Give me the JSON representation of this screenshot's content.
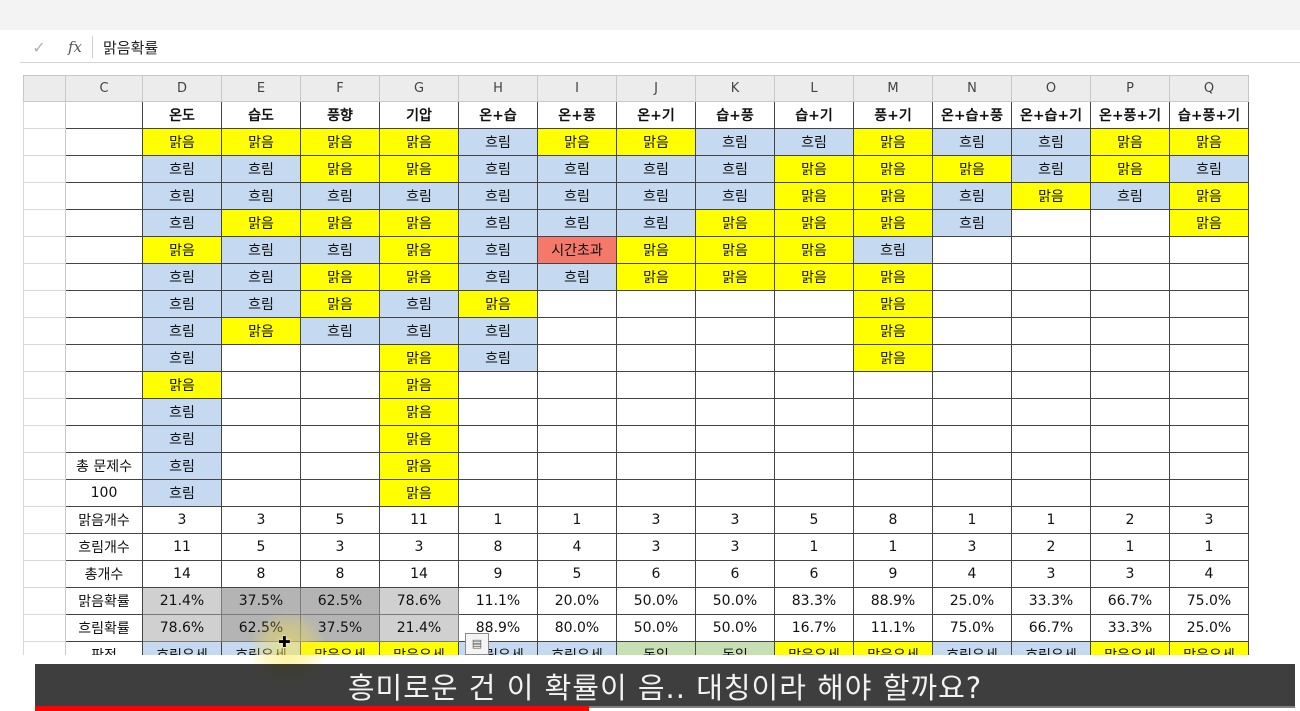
{
  "formula_bar": {
    "check_icon": "check-icon",
    "fx_label": "fx",
    "value": "맑음확률"
  },
  "columns": [
    "C",
    "D",
    "E",
    "F",
    "G",
    "H",
    "I",
    "J",
    "K",
    "L",
    "M",
    "N",
    "O",
    "P",
    "Q"
  ],
  "headers": [
    "온도",
    "습도",
    "풍향",
    "기압",
    "온+습",
    "온+풍",
    "온+기",
    "습+풍",
    "습+기",
    "풍+기",
    "온+습+풍",
    "온+습+기",
    "온+풍+기",
    "습+풍+기"
  ],
  "side_labels": {
    "total_questions_label": "총 문제수",
    "total_questions_value": "100"
  },
  "data_rows": [
    [
      "맑음",
      "맑음",
      "맑음",
      "맑음",
      "흐림",
      "맑음",
      "맑음",
      "흐림",
      "흐림",
      "맑음",
      "흐림",
      "흐림",
      "맑음",
      "맑음"
    ],
    [
      "흐림",
      "흐림",
      "맑음",
      "맑음",
      "흐림",
      "흐림",
      "흐림",
      "흐림",
      "맑음",
      "맑음",
      "맑음",
      "흐림",
      "맑음",
      "흐림"
    ],
    [
      "흐림",
      "흐림",
      "흐림",
      "흐림",
      "흐림",
      "흐림",
      "흐림",
      "흐림",
      "맑음",
      "맑음",
      "흐림",
      "맑음",
      "흐림",
      "맑음"
    ],
    [
      "흐림",
      "맑음",
      "맑음",
      "맑음",
      "흐림",
      "흐림",
      "흐림",
      "맑음",
      "맑음",
      "맑음",
      "흐림",
      "",
      "",
      "맑음"
    ],
    [
      "맑음",
      "흐림",
      "흐림",
      "맑음",
      "흐림",
      "시간초과",
      "맑음",
      "맑음",
      "맑음",
      "흐림",
      "",
      "",
      "",
      ""
    ],
    [
      "흐림",
      "흐림",
      "맑음",
      "맑음",
      "흐림",
      "흐림",
      "맑음",
      "맑음",
      "맑음",
      "맑음",
      "",
      "",
      "",
      ""
    ],
    [
      "흐림",
      "흐림",
      "맑음",
      "흐림",
      "맑음",
      "",
      "",
      "",
      "",
      "맑음",
      "",
      "",
      "",
      ""
    ],
    [
      "흐림",
      "맑음",
      "흐림",
      "흐림",
      "흐림",
      "",
      "",
      "",
      "",
      "맑음",
      "",
      "",
      "",
      ""
    ],
    [
      "흐림",
      "",
      "",
      "맑음",
      "흐림",
      "",
      "",
      "",
      "",
      "맑음",
      "",
      "",
      "",
      ""
    ],
    [
      "맑음",
      "",
      "",
      "맑음",
      "",
      "",
      "",
      "",
      "",
      "",
      "",
      "",
      "",
      ""
    ],
    [
      "흐림",
      "",
      "",
      "맑음",
      "",
      "",
      "",
      "",
      "",
      "",
      "",
      "",
      "",
      ""
    ],
    [
      "흐림",
      "",
      "",
      "맑음",
      "",
      "",
      "",
      "",
      "",
      "",
      "",
      "",
      "",
      ""
    ],
    [
      "흐림",
      "",
      "",
      "맑음",
      "",
      "",
      "",
      "",
      "",
      "",
      "",
      "",
      "",
      ""
    ],
    [
      "흐림",
      "",
      "",
      "맑음",
      "",
      "",
      "",
      "",
      "",
      "",
      "",
      "",
      "",
      ""
    ]
  ],
  "summary": [
    {
      "label": "맑음개수",
      "values": [
        "3",
        "3",
        "5",
        "11",
        "1",
        "1",
        "3",
        "3",
        "5",
        "8",
        "1",
        "1",
        "2",
        "3"
      ]
    },
    {
      "label": "흐림개수",
      "values": [
        "11",
        "5",
        "3",
        "3",
        "8",
        "4",
        "3",
        "3",
        "1",
        "1",
        "3",
        "2",
        "1",
        "1"
      ]
    },
    {
      "label": "총개수",
      "values": [
        "14",
        "8",
        "8",
        "14",
        "9",
        "5",
        "6",
        "6",
        "6",
        "9",
        "4",
        "3",
        "3",
        "4"
      ]
    },
    {
      "label": "맑음확률",
      "values": [
        "21.4%",
        "37.5%",
        "62.5%",
        "78.6%",
        "11.1%",
        "20.0%",
        "50.0%",
        "50.0%",
        "83.3%",
        "88.9%",
        "25.0%",
        "33.3%",
        "66.7%",
        "75.0%"
      ]
    },
    {
      "label": "흐림확률",
      "values": [
        "78.6%",
        "62.5%",
        "37.5%",
        "21.4%",
        "88.9%",
        "80.0%",
        "50.0%",
        "50.0%",
        "16.7%",
        "11.1%",
        "75.0%",
        "66.7%",
        "33.3%",
        "25.0%"
      ]
    },
    {
      "label": "판정",
      "values": [
        "흐림우세",
        "흐림우세",
        "맑음우세",
        "맑음우세",
        "흐림우세",
        "흐림우세",
        "동일",
        "동일",
        "맑음우세",
        "맑음우세",
        "흐림우세",
        "흐림우세",
        "맑음우세",
        "맑음우세"
      ]
    }
  ],
  "colors": {
    "clear": "#ffff00",
    "cloudy": "#c5d9f1",
    "timeout": "#f4796b",
    "equal": "#c6e0b4"
  },
  "subtitle": "흥미로운 건 이 확률이 음.. 대칭이라 해야 할까요?",
  "video_progress": 0.44
}
